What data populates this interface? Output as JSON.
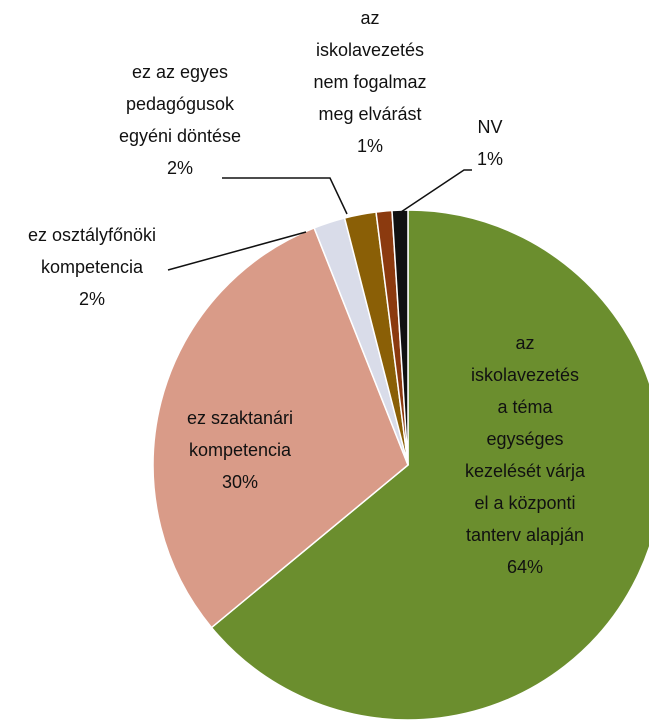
{
  "chart_data": {
    "type": "pie",
    "categories": [
      "az iskolavezetés a téma egységes kezelését várja el a központi tanterv alapján",
      "ez szaktanári kompetencia",
      "ez osztályfőnöki kompetencia",
      "ez az egyes pedagógusok egyéni döntése",
      "az iskolavezetés nem fogalmaz meg elvárást",
      "NV"
    ],
    "values": [
      64,
      30,
      2,
      2,
      1,
      1
    ],
    "value_labels": [
      "64%",
      "30%",
      "2%",
      "2%",
      "1%",
      "1%"
    ],
    "colors": [
      "#6b8e2e",
      "#d99b88",
      "#d9dce9",
      "#8a5f06",
      "#8b3a0f",
      "#111111"
    ]
  }
}
